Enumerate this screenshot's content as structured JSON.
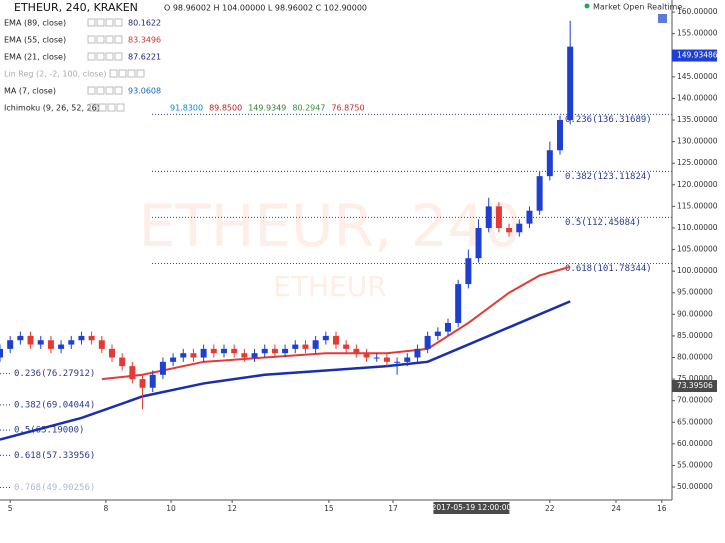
{
  "chart_data": {
    "type": "candlestick",
    "title": "ETHEUR, 240, KRAKEN",
    "ohlc_readout": "O 98.96002 H 104.00000 L 98.96002 C 102.90000",
    "status": "Market Open Realtime",
    "watermark": "ETHEUR, 240",
    "watermark_sub": "ETHEUR",
    "legend": [
      {
        "name": "EMA (89, close)",
        "values": [
          "80.1622"
        ],
        "colors": [
          "#1a237e"
        ]
      },
      {
        "name": "EMA (55, close)",
        "values": [
          "83.3496"
        ],
        "colors": [
          "#d32f2f"
        ]
      },
      {
        "name": "EMA (21, close)",
        "values": [
          "87.6221"
        ],
        "colors": [
          "#1a237e"
        ]
      },
      {
        "name": "Lin Reg (2, -2, 100, close)",
        "values": [],
        "colors": []
      },
      {
        "name": "MA (7, close)",
        "values": [
          "93.0608"
        ],
        "colors": [
          "#1565c0"
        ]
      },
      {
        "name": "Ichimoku (9, 26, 52, 26)",
        "values": [
          "91.8300",
          "89.8500",
          "149.9349",
          "80.2947",
          "76.8750"
        ],
        "colors": [
          "#0288d1",
          "#b71c1c",
          "#2e7d32",
          "#388e3c",
          "#c62828"
        ]
      }
    ],
    "open": [
      80,
      82,
      84,
      85,
      83,
      84,
      82,
      83,
      84,
      85,
      84,
      82,
      80,
      78,
      75,
      73,
      76,
      79,
      80,
      81,
      80,
      82,
      81,
      82,
      81,
      80,
      81,
      82,
      81,
      82,
      83,
      82,
      84,
      85,
      83,
      82,
      81,
      80,
      80,
      79,
      79,
      80,
      82,
      85,
      86,
      88,
      97,
      103,
      110,
      115,
      110,
      109,
      111,
      114,
      122,
      128,
      135
    ],
    "high": [
      83,
      85,
      86,
      86,
      85,
      85,
      84,
      85,
      86,
      86,
      85,
      83,
      81,
      79,
      76,
      77,
      80,
      81,
      82,
      82,
      83,
      83,
      83,
      83,
      82,
      82,
      83,
      83,
      83,
      84,
      84,
      85,
      86,
      86,
      84,
      83,
      82,
      81,
      81,
      80,
      81,
      83,
      86,
      87,
      89,
      98,
      105,
      112,
      117,
      116,
      111,
      112,
      115,
      123,
      130,
      136,
      158
    ],
    "low": [
      79,
      81,
      83,
      82,
      82,
      81,
      81,
      82,
      83,
      83,
      81,
      79,
      77,
      74,
      68,
      72,
      75,
      78,
      79,
      79,
      79,
      80,
      80,
      80,
      79,
      79,
      80,
      80,
      80,
      81,
      81,
      81,
      83,
      82,
      81,
      80,
      79,
      79,
      78,
      76,
      78,
      79,
      81,
      84,
      85,
      87,
      96,
      102,
      109,
      109,
      108,
      108,
      110,
      113,
      121,
      127,
      134
    ],
    "close": [
      82,
      84,
      85,
      83,
      84,
      82,
      83,
      84,
      85,
      84,
      82,
      80,
      78,
      75,
      73,
      76,
      79,
      80,
      81,
      80,
      82,
      81,
      82,
      81,
      80,
      81,
      82,
      81,
      82,
      83,
      82,
      84,
      85,
      83,
      82,
      81,
      80,
      80,
      79,
      79,
      80,
      82,
      85,
      86,
      88,
      97,
      103,
      110,
      115,
      110,
      109,
      111,
      114,
      122,
      128,
      135,
      152
    ],
    "up_color": "#1e3fd0",
    "down_color": "#e53935",
    "lines": [
      {
        "name": "EMA (89, close)",
        "color": "#1a2fb0",
        "width": 2.5,
        "x": [
          0,
          8,
          14,
          20,
          26,
          32,
          38,
          42,
          46,
          50,
          53,
          56
        ],
        "values": [
          61,
          66,
          71,
          74,
          76,
          77,
          78,
          79,
          83,
          87,
          90,
          93
        ]
      },
      {
        "name": "EMA (55, close)",
        "color": "#e53935",
        "width": 2,
        "x": [
          10,
          14,
          20,
          26,
          32,
          38,
          42,
          46,
          50,
          53,
          56
        ],
        "values": [
          75,
          76,
          79,
          80,
          81,
          81,
          82,
          88,
          95,
          99,
          101
        ]
      }
    ],
    "fib_right": [
      {
        "value": 136.31689,
        "label": "0.236(136.31689)"
      },
      {
        "value": 123.11824,
        "label": "0.382(123.11824)"
      },
      {
        "value": 112.45084,
        "label": "0.5(112.45084)"
      },
      {
        "value": 101.78344,
        "label": "0.618(101.78344)"
      }
    ],
    "fib_left": [
      {
        "value": 76.27912,
        "label": "0.236(76.27912)"
      },
      {
        "value": 69.04044,
        "label": "0.382(69.04044)"
      },
      {
        "value": 63.19,
        "label": "0.5(63.19000)"
      },
      {
        "value": 57.33956,
        "label": "0.618(57.33956)"
      },
      {
        "value": 49.90256,
        "label": "0.768(49.90256)"
      }
    ],
    "last_price": {
      "value": 149.93486,
      "label": "149.93486"
    },
    "cursor_price": {
      "value": 73.39506,
      "label": "73.39506"
    },
    "cursor_time": {
      "value": 46.3,
      "label": "2017-05-19 12:00:00"
    },
    "xlim": [
      0,
      66
    ],
    "ylim": [
      47,
      162.8
    ],
    "xticks": [
      {
        "value": 1,
        "label": "5"
      },
      {
        "value": 10.4,
        "label": "8"
      },
      {
        "value": 16.8,
        "label": "10"
      },
      {
        "value": 22.8,
        "label": "12"
      },
      {
        "value": 32.3,
        "label": "15"
      },
      {
        "value": 38.6,
        "label": "17"
      },
      {
        "value": 54,
        "label": "22"
      },
      {
        "value": 60.5,
        "label": "24"
      },
      {
        "value": 65,
        "label": "16"
      }
    ],
    "yticks": [
      {
        "value": 50,
        "label": "50.00000"
      },
      {
        "value": 55,
        "label": "55.00000"
      },
      {
        "value": 60,
        "label": "60.00000"
      },
      {
        "value": 65,
        "label": "65.00000"
      },
      {
        "value": 70,
        "label": "70.00000"
      },
      {
        "value": 75,
        "label": "75.00000"
      },
      {
        "value": 80,
        "label": "80.00000"
      },
      {
        "value": 85,
        "label": "85.00000"
      },
      {
        "value": 90,
        "label": "90.00000"
      },
      {
        "value": 95,
        "label": "95.00000"
      },
      {
        "value": 100,
        "label": "100.00000"
      },
      {
        "value": 105,
        "label": "105.00000"
      },
      {
        "value": 110,
        "label": "110.00000"
      },
      {
        "value": 115,
        "label": "115.00000"
      },
      {
        "value": 120,
        "label": "120.00000"
      },
      {
        "value": 125,
        "label": "125.00000"
      },
      {
        "value": 130,
        "label": "130.00000"
      },
      {
        "value": 135,
        "label": "135.00000"
      },
      {
        "value": 140,
        "label": "140.00000"
      },
      {
        "value": 145,
        "label": "145.00000"
      },
      {
        "value": 150,
        "label": "150.00000"
      },
      {
        "value": 155,
        "label": "155.00000"
      },
      {
        "value": 160,
        "label": "160.00000"
      }
    ]
  }
}
